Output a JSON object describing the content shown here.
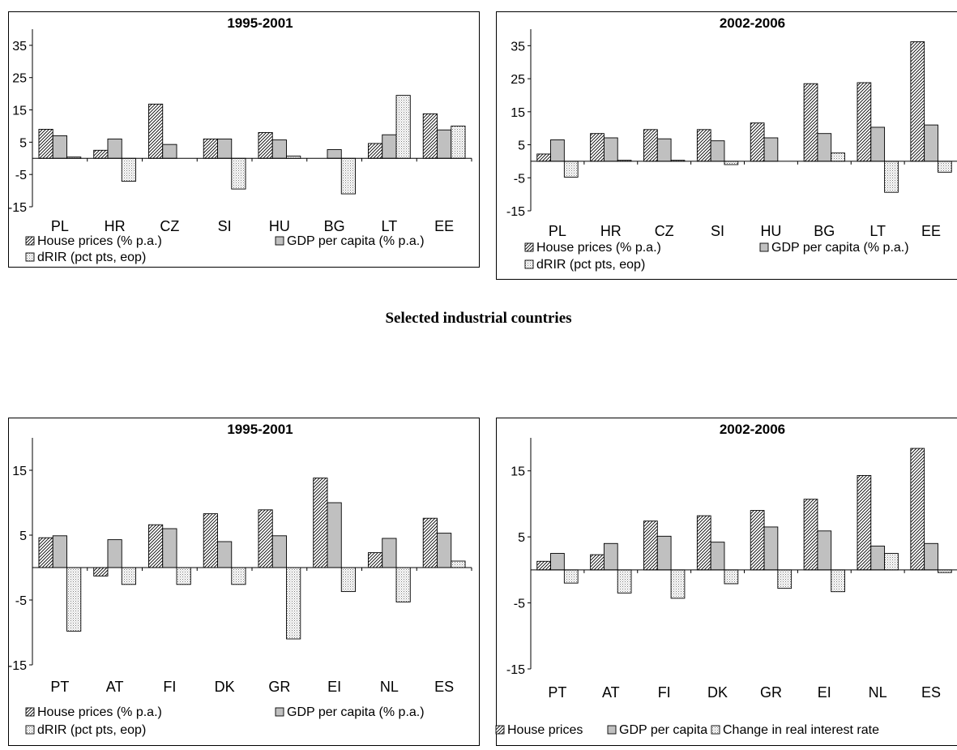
{
  "section_title": "Selected industrial countries",
  "legend_labels": {
    "house": "House prices (% p.a.)",
    "gdp": "GDP per capita (% p.a.)",
    "drir": "dRIR (pct pts, eop)",
    "house_short": "House prices",
    "gdp_short": "GDP per capita",
    "rir_change": "Change in real interest rate"
  },
  "chart_data": [
    {
      "type": "bar",
      "title": "1995-2001",
      "categories": [
        "PL",
        "HR",
        "CZ",
        "SI",
        "HU",
        "BG",
        "LT",
        "EE"
      ],
      "ylim": [
        -15,
        40
      ],
      "yticks": [
        35,
        25,
        15,
        5,
        -5,
        -15
      ],
      "series": [
        {
          "name": "House prices (% p.a.)",
          "values": [
            9,
            2.5,
            16.8,
            6,
            8,
            0,
            4.6,
            13.8
          ]
        },
        {
          "name": "GDP per capita (% p.a.)",
          "values": [
            7,
            6,
            4.3,
            6,
            5.7,
            2.7,
            7.3,
            8.8
          ]
        },
        {
          "name": "dRIR (pct pts, eop)",
          "values": [
            0.4,
            -7.1,
            0,
            -9.5,
            0.7,
            -11,
            19.5,
            10
          ]
        }
      ],
      "legend": "bottom"
    },
    {
      "type": "bar",
      "title": "2002-2006",
      "categories": [
        "PL",
        "HR",
        "CZ",
        "SI",
        "HU",
        "BG",
        "LT",
        "EE"
      ],
      "ylim": [
        -15,
        40
      ],
      "yticks": [
        35,
        25,
        15,
        5,
        -5,
        -15
      ],
      "series": [
        {
          "name": "House prices (% p.a.)",
          "values": [
            2.2,
            8.4,
            9.6,
            9.6,
            11.6,
            23.5,
            23.8,
            36.2
          ]
        },
        {
          "name": "GDP per capita (% p.a.)",
          "values": [
            6.5,
            7.1,
            6.8,
            6.2,
            7.1,
            8.4,
            10.3,
            11
          ]
        },
        {
          "name": "dRIR (pct pts, eop)",
          "values": [
            -4.8,
            0.3,
            0.3,
            -1,
            0,
            2.5,
            -9.4,
            -3.3
          ]
        }
      ],
      "legend": "bottom"
    },
    {
      "type": "bar",
      "title": "1995-2001",
      "categories": [
        "PT",
        "AT",
        "FI",
        "DK",
        "GR",
        "EI",
        "NL",
        "ES"
      ],
      "ylim": [
        -15,
        20
      ],
      "yticks": [
        15,
        5,
        -5,
        -15
      ],
      "series": [
        {
          "name": "House prices (% p.a.)",
          "values": [
            4.6,
            -1.3,
            6.6,
            8.3,
            8.9,
            13.8,
            2.3,
            7.6
          ]
        },
        {
          "name": "GDP per capita (% p.a.)",
          "values": [
            4.9,
            4.3,
            6,
            4,
            4.9,
            10,
            4.5,
            5.3
          ]
        },
        {
          "name": "dRIR (pct pts, eop)",
          "values": [
            -9.8,
            -2.6,
            -2.6,
            -2.6,
            -11,
            -3.7,
            -5.3,
            1
          ]
        }
      ],
      "legend": "bottom"
    },
    {
      "type": "bar",
      "title": "2002-2006",
      "categories": [
        "PT",
        "AT",
        "FI",
        "DK",
        "GR",
        "EI",
        "NL",
        "ES"
      ],
      "ylim": [
        -15,
        20
      ],
      "yticks": [
        15,
        5,
        -5,
        -15
      ],
      "series": [
        {
          "name": "House prices",
          "values": [
            1.3,
            2.3,
            7.4,
            8.2,
            9,
            10.7,
            14.3,
            18.4
          ]
        },
        {
          "name": "GDP per capita",
          "values": [
            2.5,
            4,
            5.1,
            4.2,
            6.5,
            5.9,
            3.6,
            4
          ]
        },
        {
          "name": "Change in real interest rate",
          "values": [
            -2,
            -3.5,
            -4.3,
            -2.1,
            -2.8,
            -3.3,
            2.5,
            -0.4
          ]
        }
      ],
      "legend": "bottom"
    }
  ]
}
